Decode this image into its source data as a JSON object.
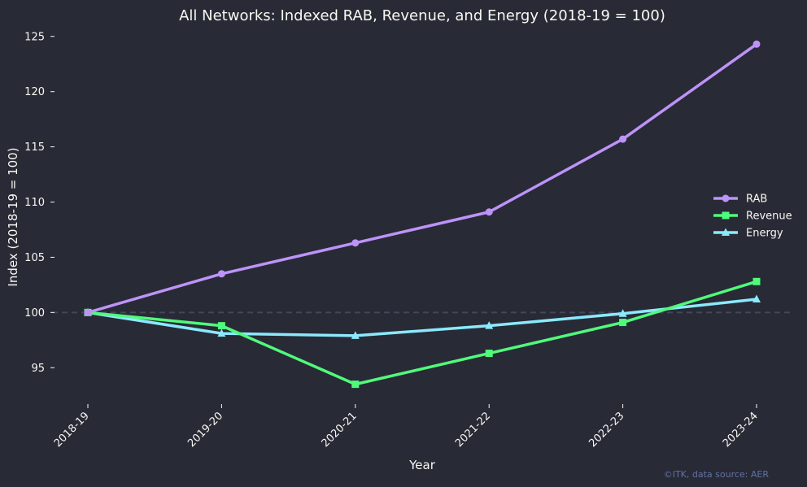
{
  "chart_data": {
    "type": "line",
    "title": "All Networks: Indexed RAB, Revenue, and Energy (2018-19 = 100)",
    "xlabel": "Year",
    "ylabel": "Index (2018-19 = 100)",
    "categories": [
      "2018-19",
      "2019-20",
      "2020-21",
      "2021-22",
      "2022-23",
      "2023-24"
    ],
    "ylim": [
      92,
      125.5
    ],
    "yticks": [
      95,
      100,
      105,
      110,
      115,
      120,
      125
    ],
    "reference_line": 100,
    "grid": false,
    "legend_position": "right",
    "series": [
      {
        "name": "RAB",
        "marker": "circle",
        "color": "#bd93f9",
        "values": [
          100,
          103.5,
          106.3,
          109.1,
          115.7,
          124.3
        ]
      },
      {
        "name": "Revenue",
        "marker": "square",
        "color": "#50fa7b",
        "values": [
          100,
          98.8,
          93.5,
          96.3,
          99.1,
          102.8
        ]
      },
      {
        "name": "Energy",
        "marker": "triangle",
        "color": "#8be9fd",
        "values": [
          100,
          98.1,
          97.9,
          98.8,
          99.9,
          101.2
        ]
      }
    ],
    "reference_line_color": "#44475a",
    "credit": "©ITK, data source: AER"
  }
}
